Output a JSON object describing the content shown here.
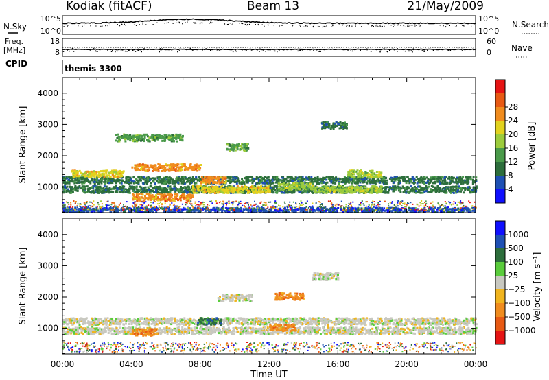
{
  "header": {
    "station": "Kodiak (fitACF)",
    "beam": "Beam 13",
    "date": "21/May/2009"
  },
  "noise_panel": {
    "left_label": "N.Sky",
    "left_ticks": [
      "10^5",
      "10^0"
    ],
    "right_label": "N.Search",
    "right_ticks": [
      "10^5",
      "10^0"
    ]
  },
  "freq_panel": {
    "left_label_1": "Freq.",
    "left_label_2": "[MHz]",
    "left_ticks": [
      "18",
      "8"
    ],
    "right_label": "Nave",
    "right_ticks": [
      "60",
      "0"
    ]
  },
  "cpid": {
    "label": "CPID",
    "value": "themis 3300"
  },
  "chart_data": [
    {
      "type": "heatmap",
      "quantity": "Power",
      "ylabel": "Slant Range [km]",
      "xlabel": "Time UT",
      "ylim": [
        180,
        4500
      ],
      "xlim": [
        "00:00",
        "24:00"
      ],
      "y_ticks": [
        "1000",
        "2000",
        "3000",
        "4000"
      ],
      "x_ticks": [
        "00:00",
        "04:00",
        "08:00",
        "12:00",
        "16:00",
        "20:00",
        "00:00"
      ],
      "colorbar_label": "Power [dB]",
      "colorbar_ticks": [
        "4",
        "8",
        "12",
        "16",
        "20",
        "24",
        "28"
      ],
      "colors": [
        "#1010ff",
        "#1e50b4",
        "#2d6e3c",
        "#4a9a4a",
        "#9ccc3c",
        "#e2d21e",
        "#f08c1e",
        "#e85a14",
        "#e61414"
      ],
      "features": [
        {
          "t_start": 0.0,
          "t_end": 24.0,
          "range_km": 1250,
          "value_db": 10
        },
        {
          "t_start": 0.0,
          "t_end": 24.0,
          "range_km": 950,
          "value_db": 9
        },
        {
          "t_start": 0.0,
          "t_end": 24.0,
          "range_km": 260,
          "value_db": 6
        },
        {
          "t_start": 0.5,
          "t_end": 3.5,
          "range_km": 1450,
          "value_db": 20
        },
        {
          "t_start": 4.0,
          "t_end": 8.0,
          "range_km": 1650,
          "value_db": 24
        },
        {
          "t_start": 4.0,
          "t_end": 7.5,
          "range_km": 700,
          "value_db": 27
        },
        {
          "t_start": 8.0,
          "t_end": 9.5,
          "range_km": 1250,
          "value_db": 27
        },
        {
          "t_start": 7.5,
          "t_end": 12.0,
          "range_km": 950,
          "value_db": 20
        },
        {
          "t_start": 9.5,
          "t_end": 10.8,
          "range_km": 2300,
          "value_db": 14
        },
        {
          "t_start": 12.5,
          "t_end": 14.5,
          "range_km": 1050,
          "value_db": 18
        },
        {
          "t_start": 14.5,
          "t_end": 18.5,
          "range_km": 950,
          "value_db": 17
        },
        {
          "t_start": 16.5,
          "t_end": 18.5,
          "range_km": 1450,
          "value_db": 18
        },
        {
          "t_start": 15.0,
          "t_end": 16.5,
          "range_km": 3000,
          "value_db": 8
        },
        {
          "t_start": 3.0,
          "t_end": 7.0,
          "range_km": 2600,
          "value_db": 12
        }
      ]
    },
    {
      "type": "heatmap",
      "quantity": "Velocity",
      "ylabel": "Slant Range [km]",
      "xlabel": "Time UT",
      "ylim": [
        180,
        4500
      ],
      "xlim": [
        "00:00",
        "24:00"
      ],
      "y_ticks": [
        "1000",
        "2000",
        "3000",
        "4000"
      ],
      "x_ticks": [
        "00:00",
        "04:00",
        "08:00",
        "12:00",
        "16:00",
        "20:00",
        "00:00"
      ],
      "colorbar_label": "Velocity [m s⁻¹]",
      "colorbar_ticks": [
        "1000",
        "500",
        "100",
        "25",
        "−25",
        "−100",
        "−500",
        "−1000"
      ],
      "colors": [
        "#1010ff",
        "#1e50b4",
        "#2d6e3c",
        "#5acc3c",
        "#c8c8c0",
        "#f0b41e",
        "#f08c1e",
        "#e85a14",
        "#e61414"
      ],
      "features": [
        {
          "t_start": 0.0,
          "t_end": 24.0,
          "range_km": 1250,
          "value_ms": 0
        },
        {
          "t_start": 0.0,
          "t_end": 24.0,
          "range_km": 950,
          "value_ms": 0
        },
        {
          "t_start": 7.8,
          "t_end": 9.2,
          "range_km": 1250,
          "value_ms": 120
        },
        {
          "t_start": 12.3,
          "t_end": 14.0,
          "range_km": 2050,
          "value_ms": -400
        },
        {
          "t_start": 12.0,
          "t_end": 13.5,
          "range_km": 1050,
          "value_ms": -150
        },
        {
          "t_start": 4.0,
          "t_end": 5.5,
          "range_km": 900,
          "value_ms": -150
        },
        {
          "t_start": 9.0,
          "t_end": 11.0,
          "range_km": 2000,
          "value_ms": 0
        },
        {
          "t_start": 14.5,
          "t_end": 16.0,
          "range_km": 2700,
          "value_ms": 0
        }
      ]
    }
  ]
}
